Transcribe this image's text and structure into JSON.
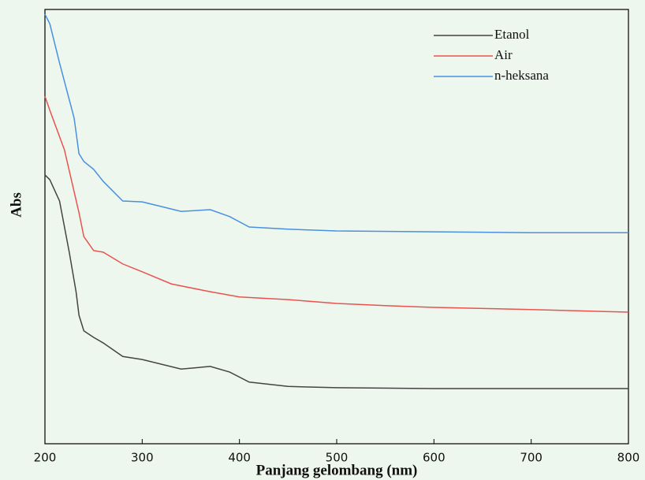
{
  "chart_data": {
    "type": "line",
    "xlabel": "Panjang gelombang (nm)",
    "ylabel": "Abs",
    "xlim": [
      200,
      800
    ],
    "xticks": [
      200,
      300,
      400,
      500,
      600,
      700,
      800
    ],
    "ylim": [
      0,
      100
    ],
    "grid": false,
    "legend": "upper right",
    "series": [
      {
        "name": "Etanol",
        "color": "#444444",
        "x": [
          200,
          205,
          215,
          225,
          232,
          235,
          240,
          250,
          260,
          280,
          300,
          340,
          370,
          390,
          410,
          450,
          500,
          600,
          700,
          800
        ],
        "values": [
          61.9,
          60.8,
          55.9,
          44.1,
          35,
          29.6,
          26,
          24.5,
          23.2,
          20.1,
          19.4,
          17.2,
          17.8,
          16.5,
          14.2,
          13.2,
          12.9,
          12.7,
          12.7,
          12.7
        ]
      },
      {
        "name": "Air",
        "color": "#e8534f",
        "x": [
          200,
          205,
          220,
          235,
          240,
          250,
          260,
          280,
          300,
          330,
          370,
          400,
          450,
          500,
          550,
          600,
          700,
          800
        ],
        "values": [
          80,
          76.8,
          67.7,
          53.2,
          47.7,
          44.5,
          44.1,
          41.4,
          39.6,
          36.8,
          35,
          33.8,
          33.2,
          32.3,
          31.8,
          31.4,
          30.9,
          30.3
        ]
      },
      {
        "name": "n-heksana",
        "color": "#4a8fe0",
        "x": [
          200,
          205,
          215,
          230,
          235,
          240,
          250,
          260,
          280,
          300,
          320,
          340,
          370,
          390,
          410,
          450,
          500,
          600,
          700,
          800
        ],
        "values": [
          98.9,
          96.7,
          87.7,
          75,
          66.8,
          65,
          63.2,
          60.4,
          55.9,
          55.7,
          54.6,
          53.5,
          53.9,
          52.3,
          49.9,
          49.4,
          49,
          48.8,
          48.6,
          48.6
        ]
      }
    ]
  }
}
